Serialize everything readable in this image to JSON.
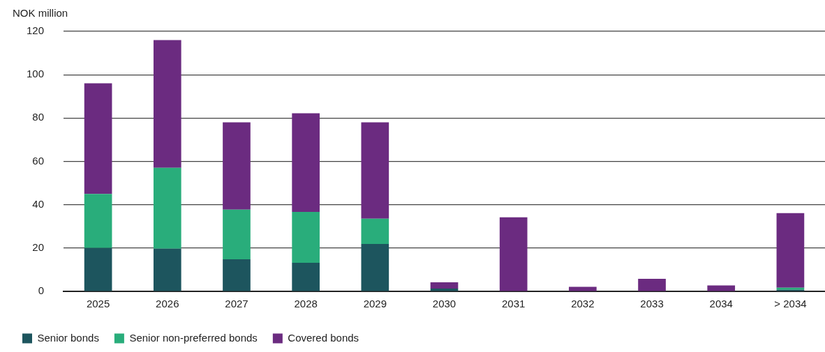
{
  "chart_data": {
    "type": "bar",
    "stacked": true,
    "ylabel": "NOK million",
    "categories": [
      "2025",
      "2026",
      "2027",
      "2028",
      "2029",
      "2030",
      "2031",
      "2032",
      "2033",
      "2034",
      "> 2034"
    ],
    "series": [
      {
        "name": "Senior bonds",
        "color": "#1d555e",
        "values": [
          20,
          19.7,
          14.8,
          13.2,
          21.9,
          1.3,
          0,
          0,
          0,
          0,
          0.7
        ]
      },
      {
        "name": "Senior non-preferred bonds",
        "color": "#29ad7b",
        "values": [
          25,
          37.3,
          22.9,
          23.5,
          11.6,
          0,
          0,
          0,
          0,
          0,
          1
        ]
      },
      {
        "name": "Covered bonds",
        "color": "#6b2b80",
        "values": [
          51,
          59,
          40.3,
          45.5,
          44.5,
          2.9,
          34.2,
          2.1,
          5.8,
          2.7,
          34.4
        ]
      }
    ],
    "ylim": [
      0,
      120
    ],
    "yticks": [
      0,
      20,
      40,
      60,
      80,
      100,
      120
    ],
    "grid": "y",
    "legend": "bottom left"
  }
}
